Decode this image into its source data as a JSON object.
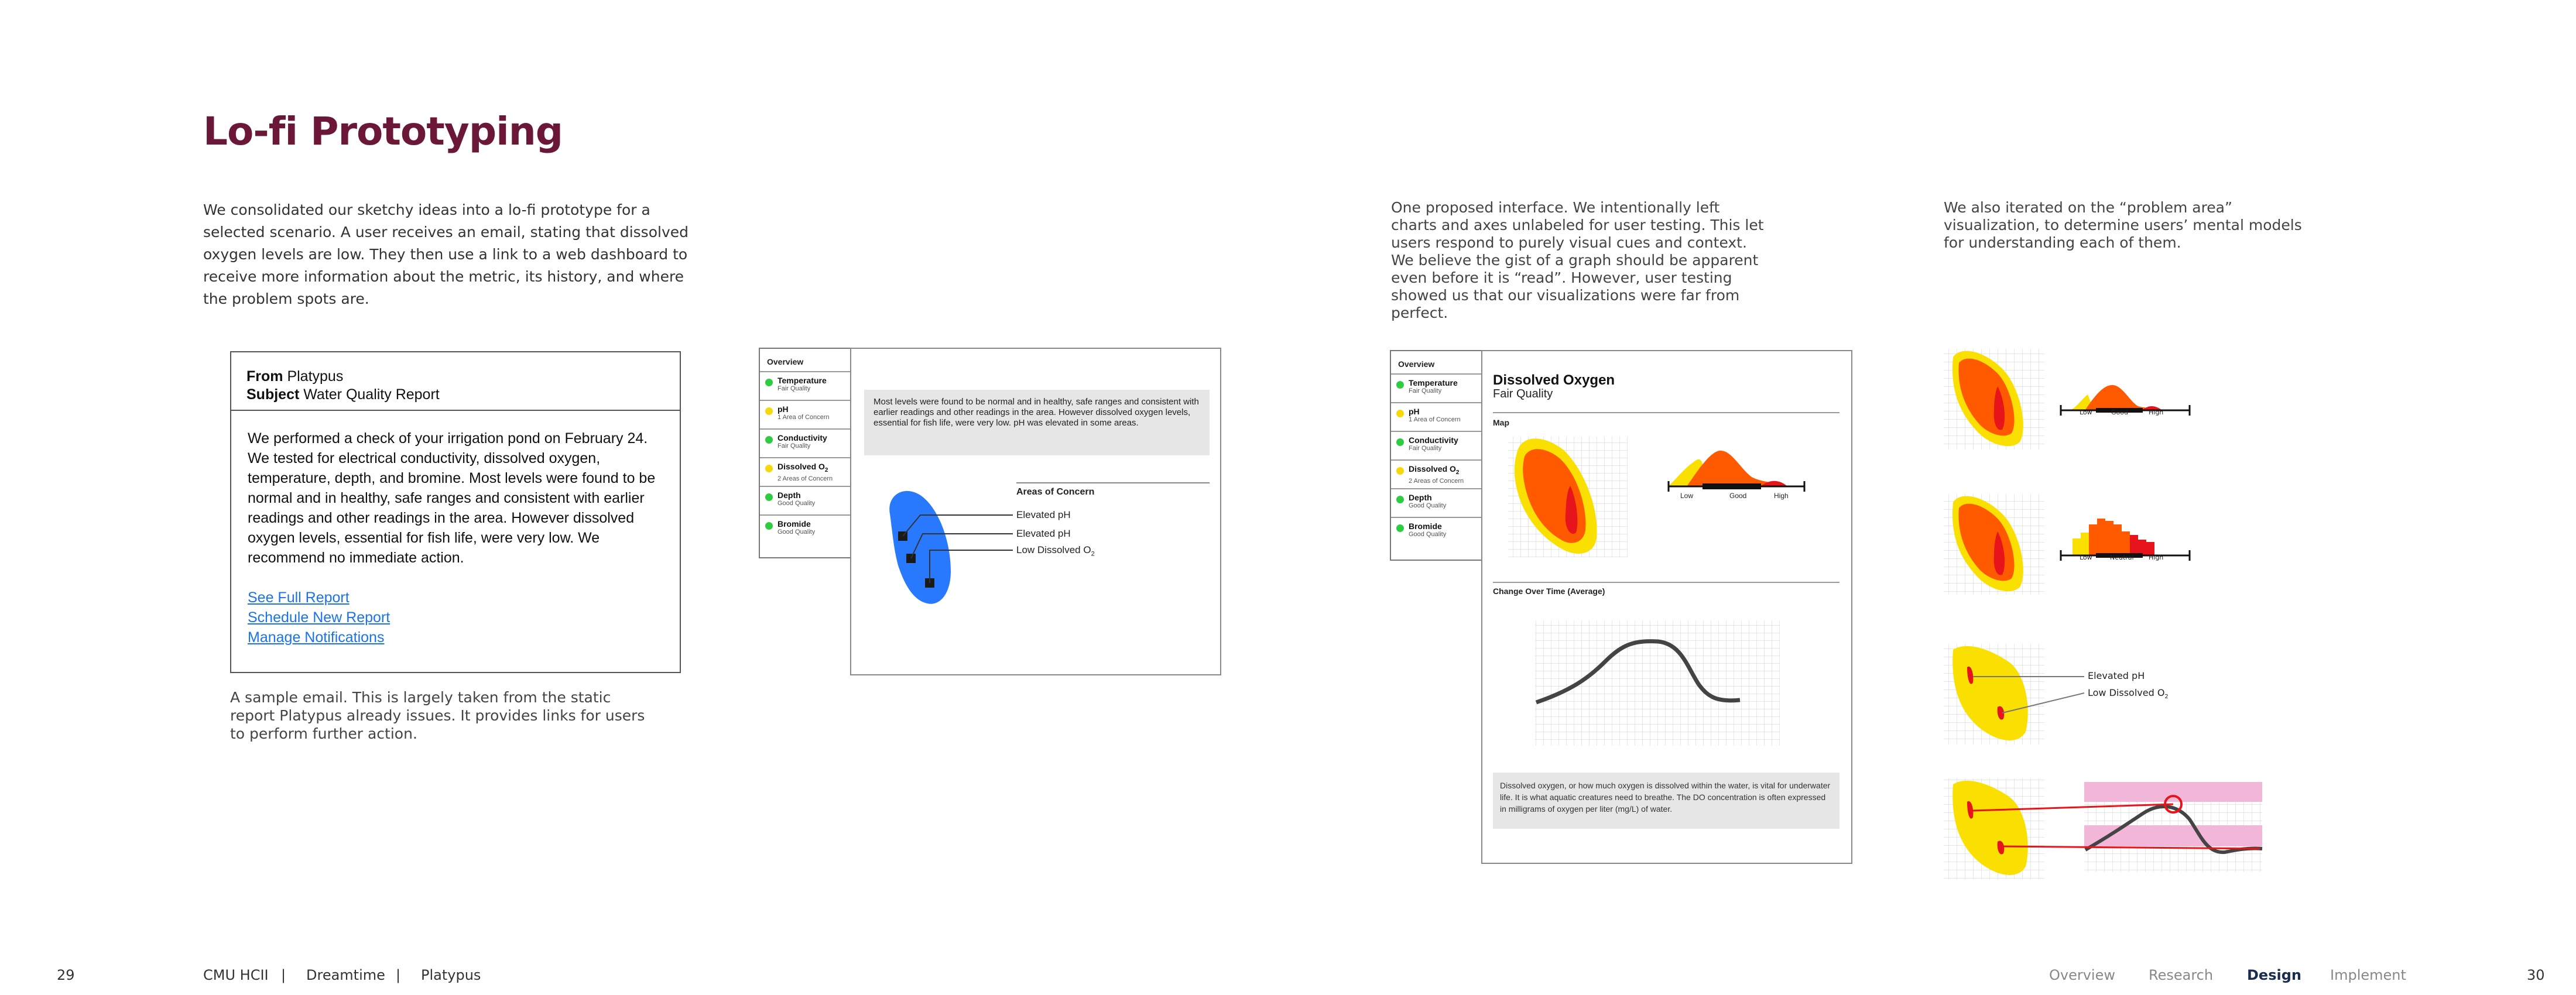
{
  "page": {
    "title": "Lo-fi Prototyping",
    "intro": "We consolidated our sketchy ideas into a lo-fi prototype for a selected scenario. A user receives an email, stating that dissolved oxygen levels are low. They then use a link to a web dashboard to receive more information about the metric, its history, and where the problem spots are.",
    "caption_mid": "One proposed interface. We intentionally left charts and axes unlabeled for user testing. This let users respond to purely visual cues and context. We believe the gist of a graph should be apparent even before it is “read”. However, user testing showed us that our visualizations were far from perfect.",
    "caption_right": "We also iterated on the “problem area” visualization, to determine users’ mental models for understanding each of them.",
    "caption_email": "A sample email. This is largely taken from the static report Platypus already issues. It provides links for users to perform further action."
  },
  "email": {
    "from_label": "From",
    "from_value": "Platypus",
    "subject_label": "Subject",
    "subject_value": "Water Quality Report",
    "body": "We performed a check of your irrigation pond on February 24. We tested for electrical conductivity, dissolved oxygen, temperature, depth, and bromine. Most levels were found to be normal and in healthy, safe ranges and consistent with earlier readings and other readings in the area. However dissolved oxygen levels, essential for fish life, were very low. We recommend no immediate action.",
    "links": [
      "See Full Report",
      "Schedule New Report",
      "Manage Notifications"
    ]
  },
  "overview": {
    "title": "Overview",
    "items": [
      {
        "name": "Temperature",
        "sub": "Fair Quality",
        "color": "#2ecc40"
      },
      {
        "name": "pH",
        "sub": "1 Area of Concern",
        "color": "#f5d90a"
      },
      {
        "name": "Conductivity",
        "sub": "Fair Quality",
        "color": "#2ecc40"
      },
      {
        "name": "Dissolved O",
        "sub_o": "2",
        "sub": "2 Areas of Concern",
        "color": "#f5d90a"
      },
      {
        "name": "Depth",
        "sub": "Good Quality",
        "color": "#2ecc40"
      },
      {
        "name": "Bromide",
        "sub": "Good Quality",
        "color": "#2ecc40"
      }
    ]
  },
  "map_panel": {
    "summary": "Most levels were found to be normal and in healthy, safe ranges and consistent with earlier readings and other readings in the area. However dissolved oxygen levels, essential for fish life, were very low. pH was elevated in some areas.",
    "areas_title": "Areas of Concern",
    "areas": [
      "Elevated pH",
      "Elevated pH",
      "Low Dissolved O"
    ],
    "o_sub": "2"
  },
  "do_panel": {
    "title": "Dissolved Oxygen",
    "subtitle": "Fair Quality",
    "map_label": "Map",
    "change_label": "Change Over Time (Average)",
    "scale": [
      "Low",
      "Good",
      "High"
    ],
    "note": "Dissolved oxygen, or how much oxygen is dissolved within the water, is vital for underwater life. It is what aquatic creatures need to breathe. The DO concentration is often expressed in milligrams of oxygen per liter (mg/L) of water."
  },
  "iterations": {
    "scale_a": [
      "Low",
      "Good",
      "High"
    ],
    "scale_b": [
      "Low",
      "Neutral",
      "High"
    ],
    "labels": [
      "Elevated pH",
      "Low Dissolved O"
    ],
    "o_sub": "2"
  },
  "footer": {
    "page_left": "29",
    "page_right": "30",
    "crumbs": [
      "CMU HCII",
      "Dreamtime",
      "Platypus"
    ],
    "sep": "|",
    "nav": [
      "Overview",
      "Research",
      "Design",
      "Implement"
    ],
    "active_nav": "Design"
  },
  "colors": {
    "title": "#6b1838",
    "link": "#1a73e8",
    "nav_active": "#1b2d4f",
    "heat_red": "#e8141c",
    "heat_orange": "#ff5a00",
    "heat_yellow": "#f9e000",
    "blue_blob": "#2979ff",
    "pink_band": "#f2b6d8"
  }
}
